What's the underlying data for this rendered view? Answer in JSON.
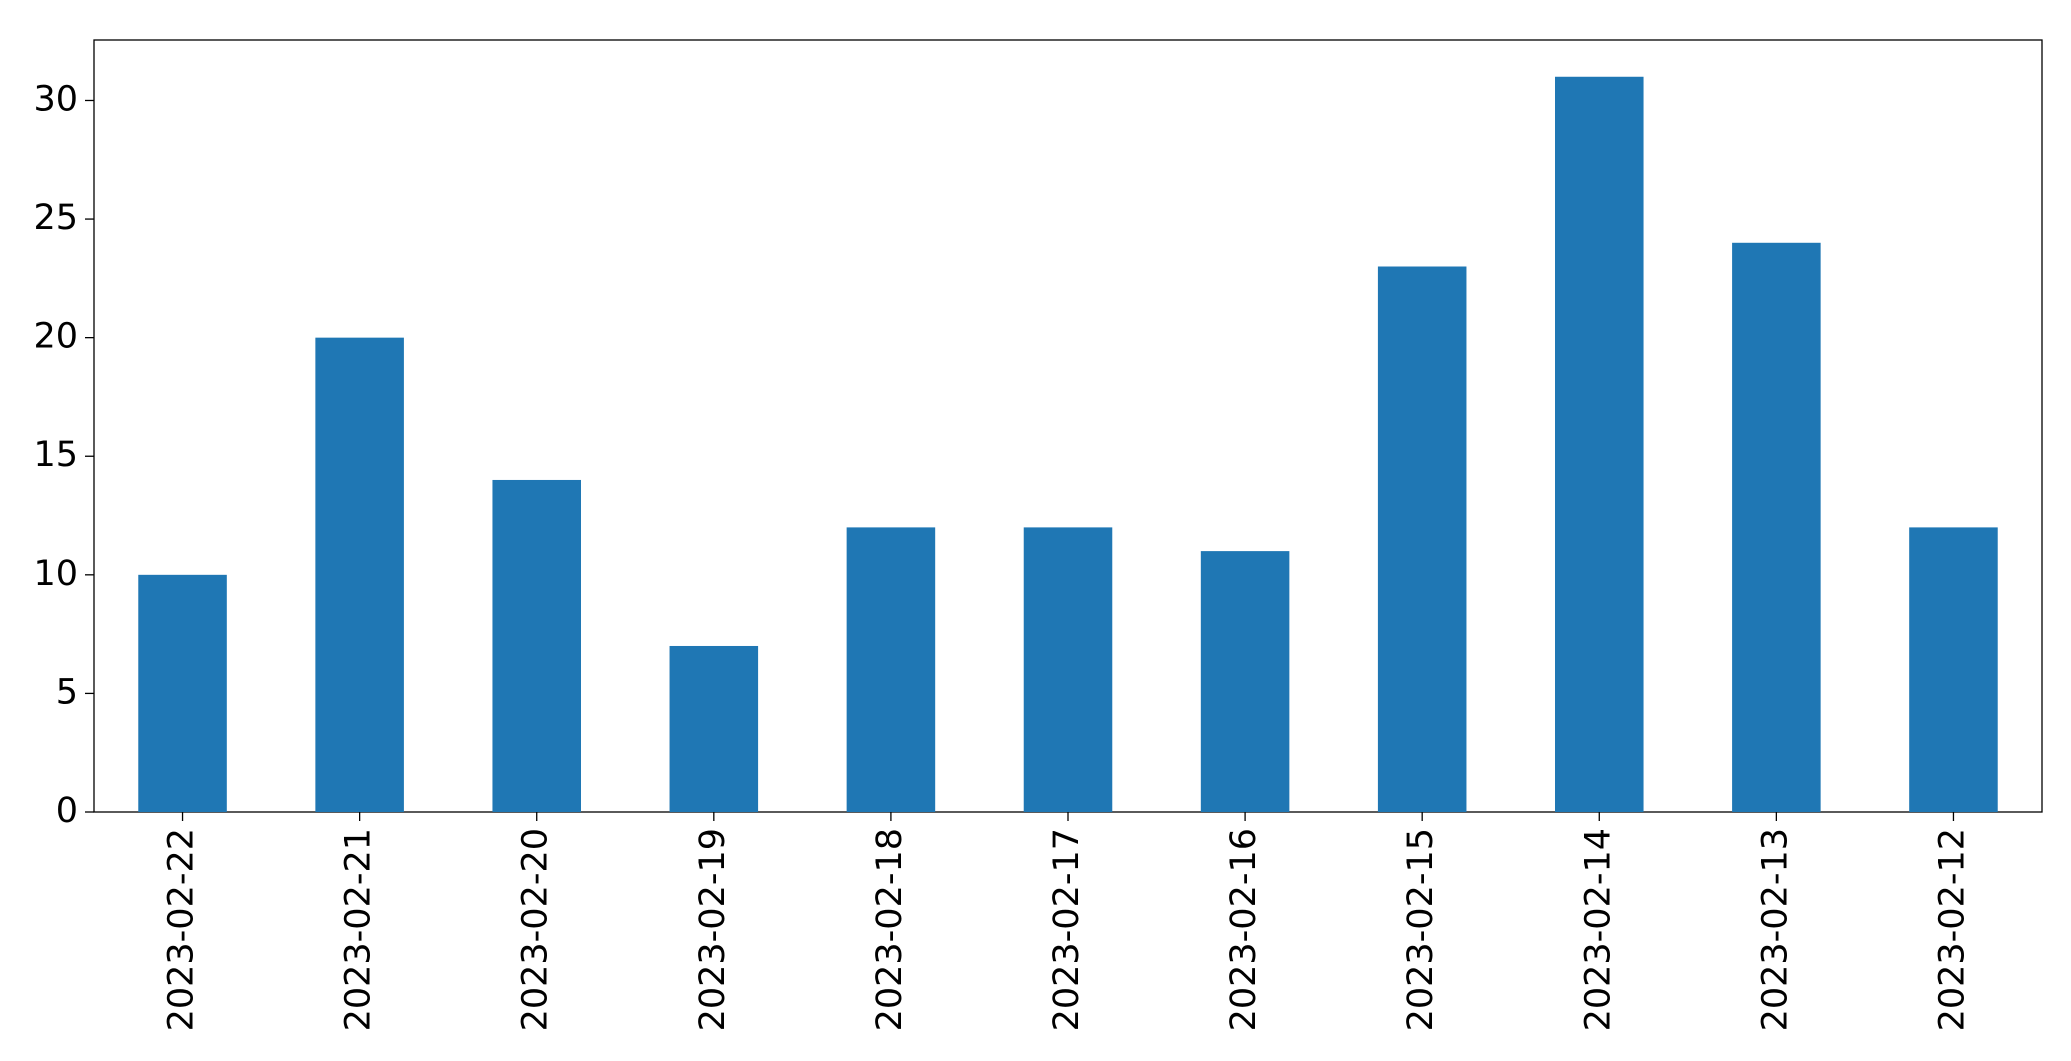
{
  "chart_data": {
    "type": "bar",
    "categories": [
      "2023-02-22",
      "2023-02-21",
      "2023-02-20",
      "2023-02-19",
      "2023-02-18",
      "2023-02-17",
      "2023-02-16",
      "2023-02-15",
      "2023-02-14",
      "2023-02-13",
      "2023-02-12"
    ],
    "values": [
      10,
      20,
      14,
      7,
      12,
      12,
      11,
      23,
      31,
      24,
      12
    ],
    "color": "#1f77b4",
    "ylim": [
      0,
      32.55
    ],
    "yticks": [
      0,
      5,
      10,
      15,
      20,
      25,
      30
    ],
    "grid": false
  }
}
